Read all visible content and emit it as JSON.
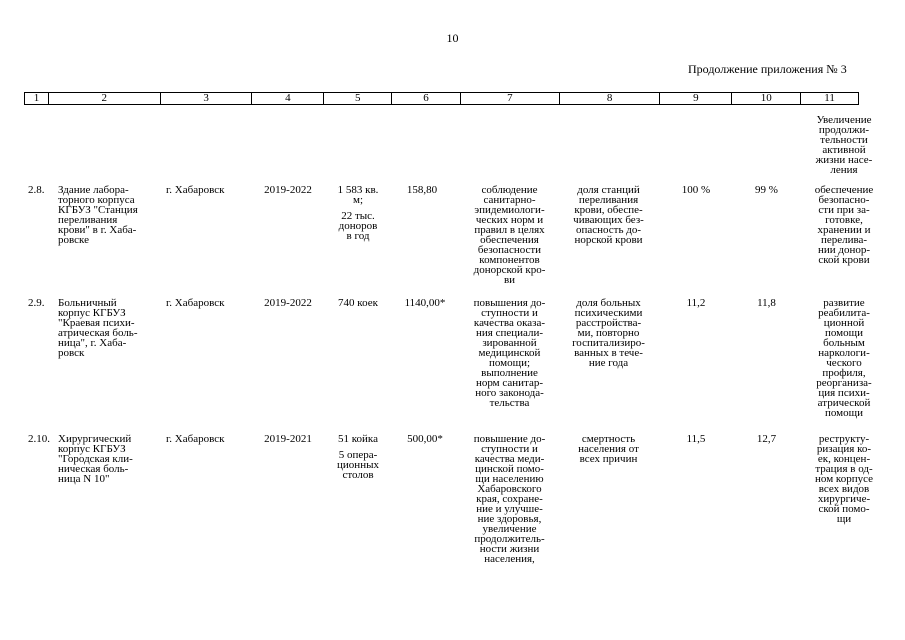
{
  "page": {
    "number": "10",
    "continuation": "Продолжение приложения № 3"
  },
  "table": {
    "headers": [
      "1",
      "2",
      "3",
      "4",
      "5",
      "6",
      "7",
      "8",
      "9",
      "10",
      "11"
    ],
    "top_note": [
      "Увеличение",
      "продолжи-",
      "тельности",
      "активной",
      "жизни насе-",
      "ления"
    ],
    "rows": [
      {
        "num": "2.8.",
        "name": [
          "Здание лабора-",
          "торного корпуса",
          "КГБУЗ \"Станция",
          "переливания",
          "крови\" в г. Хаба-",
          "ровске"
        ],
        "city": "г. Хабаровск",
        "period": "2019-2022",
        "capacity": [
          "1 583  кв.",
          "м;"
        ],
        "capacity2": [
          "22 тыс.",
          "доноров",
          "в год"
        ],
        "cost": "158,80",
        "goal": [
          "соблюдение",
          "санитарно-",
          "эпидемиологи-",
          "ческих норм и",
          "правил в целях",
          "обеспечения",
          "безопасности",
          "компонентов",
          "донорской кро-",
          "ви"
        ],
        "indicator": [
          "доля станций",
          "переливания",
          "крови, обеспе-",
          "чивающих без-",
          "опасность до-",
          "норской крови"
        ],
        "v9": "100 %",
        "v10": "99 %",
        "result": [
          "обеспечение",
          "безопасно-",
          "сти при за-",
          "готовке,",
          "хранении и",
          "перелива-",
          "нии донор-",
          "ской крови"
        ]
      },
      {
        "num": "2.9.",
        "name": [
          "Больничный",
          "корпус КГБУЗ",
          "\"Краевая психи-",
          "атрическая боль-",
          "ница\", г. Хаба-",
          "ровск"
        ],
        "city": "г. Хабаровск",
        "period": "2019-2022",
        "capacity": [
          "740 коек"
        ],
        "cost": "1140,00*",
        "goal": [
          "повышения до-",
          "ступности и",
          "качества оказа-",
          "ния специали-",
          "зированной",
          "медицинской",
          "помощи;",
          "выполнение",
          "норм санитар-",
          "ного законода-",
          "тельства"
        ],
        "indicator": [
          "доля больных",
          "психическими",
          "расстройства-",
          "ми, повторно",
          "госпитализиро-",
          "ванных в тече-",
          "ние года"
        ],
        "v9": "11,2",
        "v10": "11,8",
        "result": [
          "развитие",
          "реабилита-",
          "ционной",
          "помощи",
          "больным",
          "наркологи-",
          "ческого",
          "профиля,",
          "реорганиза-",
          "ция психи-",
          "атрической",
          "помощи"
        ]
      },
      {
        "num": "2.10.",
        "name": [
          "Хирургический",
          "корпус КГБУЗ",
          "\"Городская кли-",
          "ническая боль-",
          "ница N 10\""
        ],
        "city": "г. Хабаровск",
        "period": "2019-2021",
        "capacity": [
          "51 койка"
        ],
        "capacity2": [
          "5 опера-",
          "ционных",
          "столов"
        ],
        "cost": "500,00*",
        "goal": [
          "повышение до-",
          "ступности и",
          "качества меди-",
          "цинской помо-",
          "щи населению",
          "Хабаровского",
          "края, сохране-",
          "ние и улучше-",
          "ние здоровья,",
          "увеличение",
          "продолжитель-",
          "ности жизни",
          "населения,"
        ],
        "indicator": [
          "смертность",
          "населения от",
          "всех причин"
        ],
        "v9": "11,5",
        "v10": "12,7",
        "result": [
          "реструкту-",
          "ризация ко-",
          "ек, концен-",
          "трация в од-",
          "ном корпусе",
          "всех видов",
          "хирургиче-",
          "ской помо-",
          "щи"
        ]
      }
    ]
  }
}
